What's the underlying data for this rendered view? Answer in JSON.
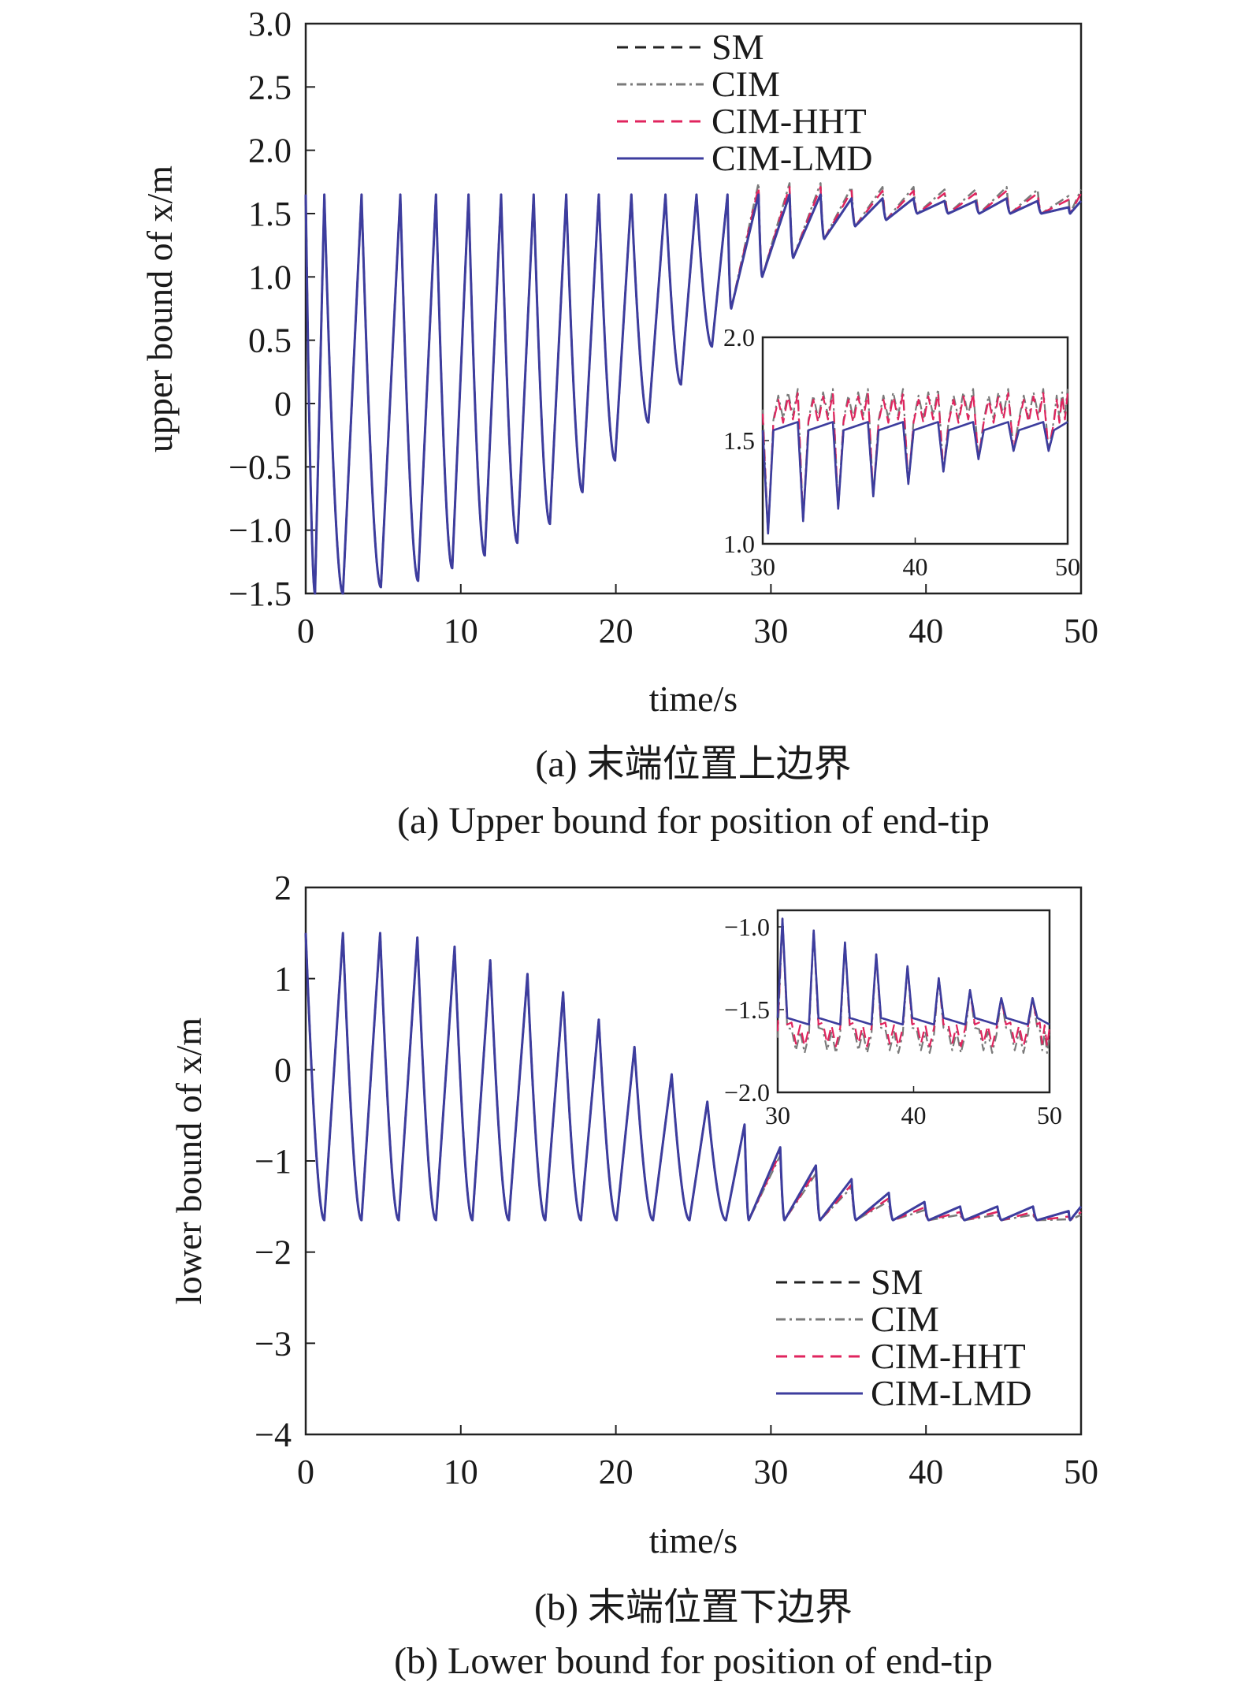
{
  "chart_data": [
    {
      "type": "line",
      "panel": "a",
      "ylabel": "upper bound of x/m",
      "xlabel": "time/s",
      "xlim": [
        0,
        50
      ],
      "ylim": [
        -1.5,
        3.0
      ],
      "xticks": [
        "0",
        "10",
        "20",
        "30",
        "40",
        "50"
      ],
      "yticks": [
        "3.0",
        "2.5",
        "2.0",
        "1.5",
        "1.0",
        "0.5",
        "0",
        "−0.5",
        "−1.0",
        "−1.5"
      ],
      "legend": [
        "SM",
        "CIM",
        "CIM-HHT",
        "CIM-LMD"
      ],
      "legend_position": "top",
      "caption_cn": "(a) 末端位置上边界",
      "caption_en": "(a) Upper bound for position of end-tip",
      "series": [
        {
          "name": "SM",
          "color": "#222222",
          "style": "dashed"
        },
        {
          "name": "CIM",
          "color": "#7a7a7a",
          "style": "dash-dot"
        },
        {
          "name": "CIM-HHT",
          "color": "#e0245e",
          "style": "dashed"
        },
        {
          "name": "CIM-LMD",
          "color": "#3d3d9e",
          "style": "solid"
        }
      ],
      "approx_data": {
        "x": [
          0,
          1.2,
          3.6,
          6.1,
          8.4,
          10.5,
          12.6,
          14.7,
          16.8,
          18.9,
          21.0,
          23.2,
          25.2,
          27.2,
          29.2,
          31.2,
          33.2,
          35.2,
          37.2,
          39.2,
          41.2,
          43.2,
          45.2,
          47.2,
          49.2,
          50
        ],
        "peak_values": [
          1.65,
          1.65,
          1.65,
          1.65,
          1.65,
          1.65,
          1.65,
          1.65,
          1.65,
          1.65,
          1.65,
          1.65,
          1.65,
          1.65,
          1.65,
          1.65,
          1.65,
          1.62,
          1.62,
          1.62,
          1.6,
          1.6,
          1.62,
          1.6,
          1.55,
          1.6
        ],
        "trough_values": [
          1.65,
          -1.5,
          -1.5,
          -1.45,
          -1.4,
          -1.3,
          -1.2,
          -1.1,
          -0.95,
          -0.7,
          -0.45,
          -0.15,
          0.15,
          0.45,
          0.75,
          1.0,
          1.15,
          1.3,
          1.4,
          1.45,
          1.5,
          1.5,
          1.5,
          1.5,
          1.5,
          1.5
        ]
      },
      "inset": {
        "xlim": [
          30,
          50
        ],
        "ylim": [
          1.0,
          2.0
        ],
        "xticks": [
          "30",
          "40",
          "50"
        ],
        "yticks": [
          "2.0",
          "1.5",
          "1.0"
        ]
      }
    },
    {
      "type": "line",
      "panel": "b",
      "ylabel": "lower bound of x/m",
      "xlabel": "time/s",
      "xlim": [
        0,
        50
      ],
      "ylim": [
        -4,
        2
      ],
      "xticks": [
        "0",
        "10",
        "20",
        "30",
        "40",
        "50"
      ],
      "yticks": [
        "2",
        "1",
        "0",
        "−1",
        "−2",
        "−3",
        "−4"
      ],
      "legend": [
        "SM",
        "CIM",
        "CIM-HHT",
        "CIM-LMD"
      ],
      "legend_position": "bottom-right",
      "caption_cn": "(b) 末端位置下边界",
      "caption_en": "(b) Lower bound for position of end-tip",
      "series": [
        {
          "name": "SM",
          "color": "#222222",
          "style": "dashed"
        },
        {
          "name": "CIM",
          "color": "#7a7a7a",
          "style": "dash-dot"
        },
        {
          "name": "CIM-HHT",
          "color": "#e0245e",
          "style": "dashed"
        },
        {
          "name": "CIM-LMD",
          "color": "#3d3d9e",
          "style": "solid"
        }
      ],
      "approx_data": {
        "x": [
          0,
          2.4,
          4.8,
          7.2,
          9.6,
          11.9,
          14.3,
          16.6,
          18.9,
          21.2,
          23.6,
          25.9,
          28.3,
          30.6,
          32.9,
          35.2,
          37.6,
          39.9,
          42.2,
          44.6,
          46.9,
          49.2,
          50
        ],
        "peak_values": [
          1.5,
          1.5,
          1.5,
          1.45,
          1.35,
          1.2,
          1.05,
          0.85,
          0.55,
          0.25,
          -0.05,
          -0.35,
          -0.6,
          -0.85,
          -1.05,
          -1.2,
          -1.35,
          -1.45,
          -1.5,
          -1.5,
          -1.5,
          -1.55,
          -1.5
        ],
        "trough_values": [
          1.5,
          -1.65,
          -1.65,
          -1.65,
          -1.65,
          -1.65,
          -1.65,
          -1.65,
          -1.65,
          -1.65,
          -1.65,
          -1.65,
          -1.65,
          -1.65,
          -1.65,
          -1.65,
          -1.65,
          -1.65,
          -1.65,
          -1.65,
          -1.65,
          -1.65,
          -1.65
        ]
      },
      "inset": {
        "xlim": [
          30,
          50
        ],
        "ylim": [
          -2.0,
          -0.9
        ],
        "xticks": [
          "30",
          "40",
          "50"
        ],
        "yticks": [
          "−1.0",
          "−1.5",
          "−2.0"
        ]
      }
    }
  ]
}
